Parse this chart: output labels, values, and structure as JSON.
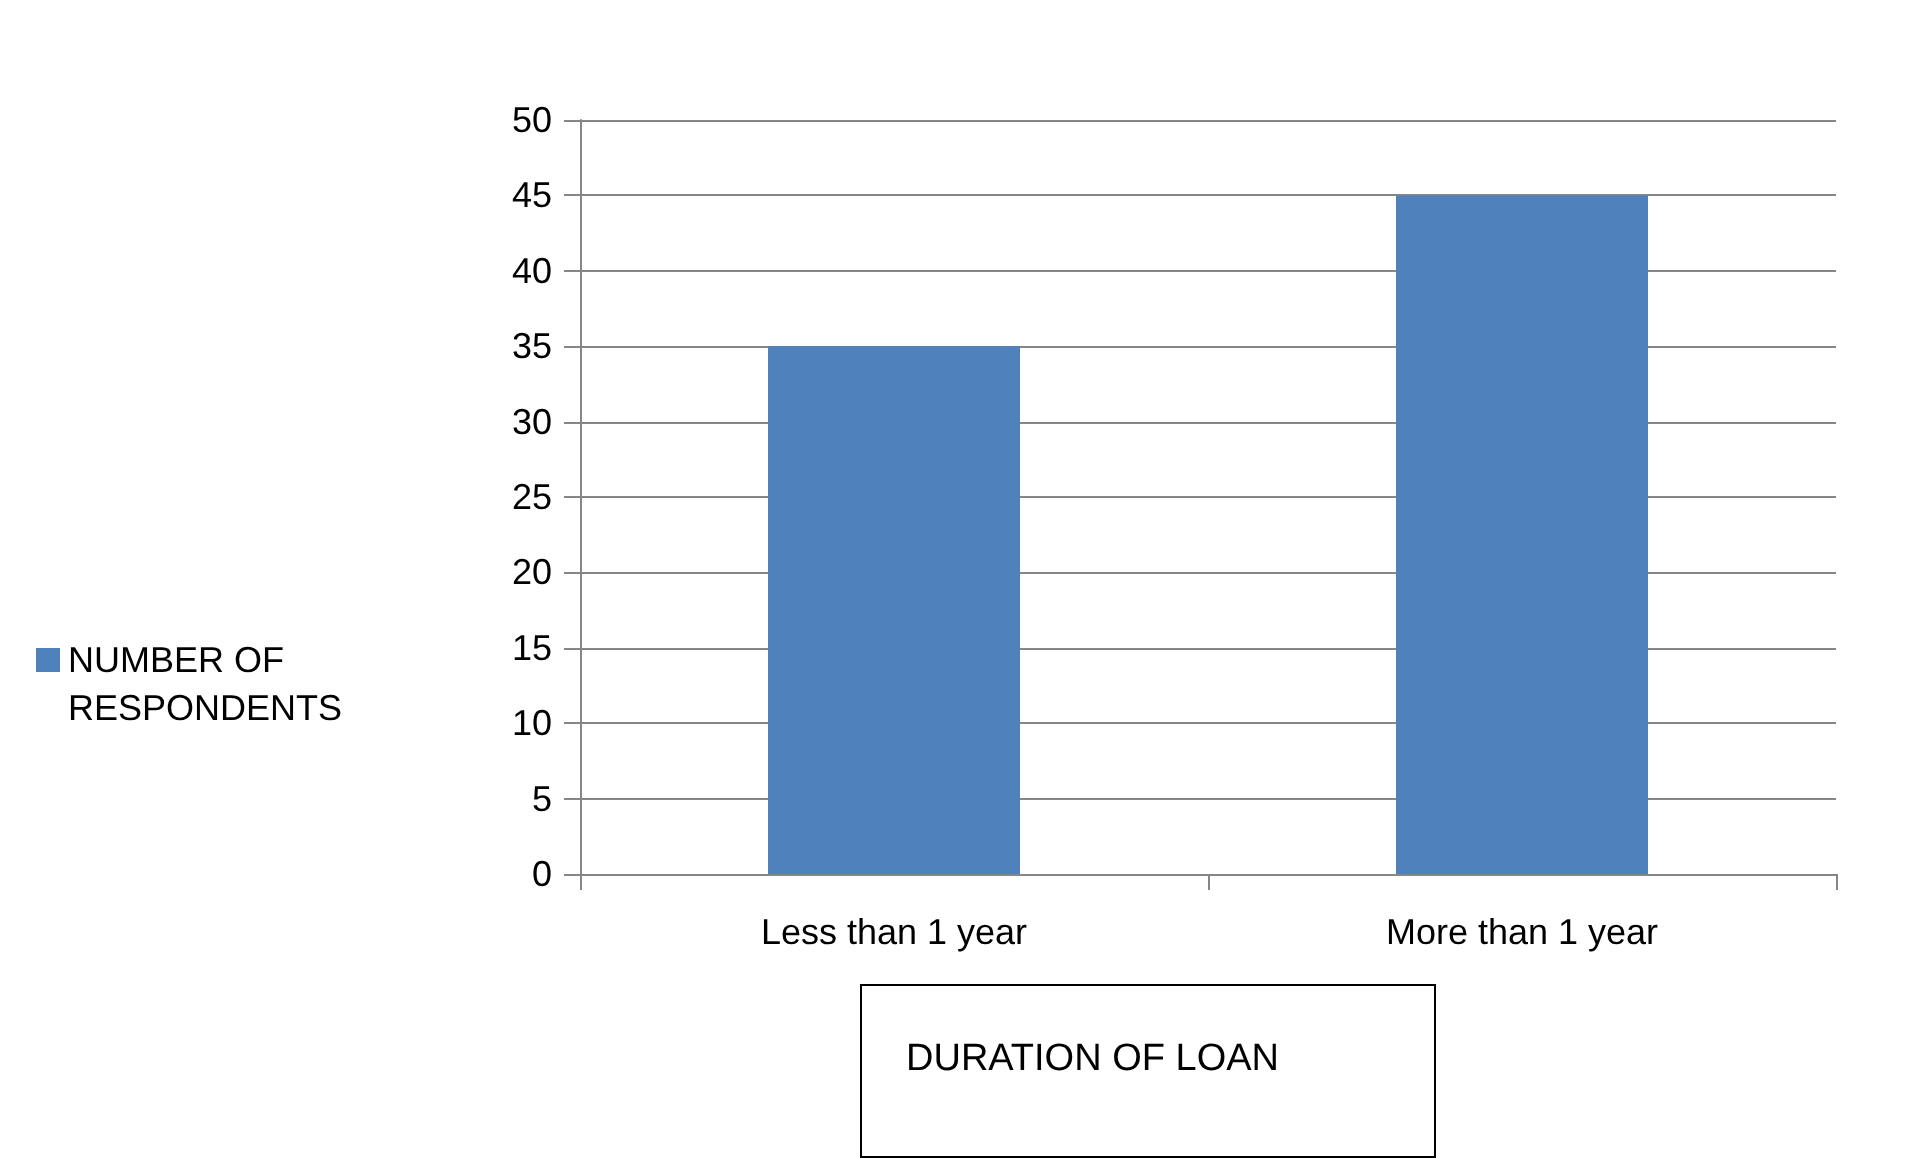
{
  "chart_data": {
    "type": "bar",
    "categories": [
      "Less than 1 year",
      "More than 1 year"
    ],
    "series": [
      {
        "name": "NUMBER OF RESPONDENTS",
        "color": "#4f81bd",
        "values": [
          35,
          45
        ]
      }
    ],
    "xlabel": "DURATION OF LOAN",
    "ylim": [
      0,
      50
    ],
    "yticks": [
      0,
      5,
      10,
      15,
      20,
      25,
      30,
      35,
      40,
      45,
      50
    ],
    "grid": "y",
    "legend": "left"
  }
}
